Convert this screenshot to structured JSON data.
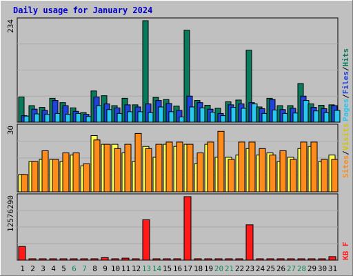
{
  "chart_data": [
    {
      "type": "bar",
      "title": "Daily usage for January 2024",
      "categories": [
        "1",
        "2",
        "3",
        "4",
        "5",
        "6",
        "7",
        "8",
        "9",
        "10",
        "11",
        "12",
        "13",
        "14",
        "15",
        "16",
        "17",
        "18",
        "19",
        "20",
        "21",
        "22",
        "23",
        "24",
        "25",
        "26",
        "27",
        "28",
        "29",
        "30",
        "31"
      ],
      "weekend_days": [
        "6",
        "7",
        "13",
        "14",
        "20",
        "21",
        "27",
        "28"
      ],
      "ymax_label": "234",
      "ylim": [
        0,
        234
      ],
      "legend": [
        "Pages",
        "Files",
        "Hits"
      ],
      "series": [
        {
          "name": "Hits",
          "color": "#0a7a5c",
          "values": [
            58,
            38,
            34,
            55,
            45,
            33,
            22,
            72,
            61,
            38,
            55,
            40,
            234,
            57,
            52,
            37,
            212,
            50,
            39,
            32,
            47,
            51,
            166,
            35,
            55,
            38,
            38,
            89,
            42,
            39,
            40
          ]
        },
        {
          "name": "Files",
          "color": "#1f44dd",
          "values": [
            15,
            30,
            27,
            50,
            38,
            25,
            18,
            58,
            42,
            33,
            40,
            35,
            42,
            50,
            43,
            27,
            60,
            45,
            30,
            20,
            40,
            42,
            45,
            31,
            52,
            29,
            32,
            60,
            34,
            31,
            38
          ]
        },
        {
          "name": "Pages",
          "color": "#29c8f0",
          "values": [
            14,
            19,
            18,
            20,
            18,
            20,
            13,
            38,
            29,
            20,
            24,
            24,
            22,
            35,
            24,
            12,
            35,
            33,
            23,
            15,
            34,
            32,
            42,
            20,
            28,
            20,
            21,
            50,
            26,
            22,
            27
          ]
        }
      ]
    },
    {
      "type": "bar",
      "ymax_label": "30",
      "ylim": [
        0,
        30
      ],
      "legend": [
        "Sites",
        "Visits"
      ],
      "series": [
        {
          "name": "Visits",
          "color": "#ffff55",
          "values": [
            8,
            14,
            15,
            15,
            14,
            17,
            12,
            26,
            22,
            22,
            18,
            14,
            21,
            16,
            22,
            21,
            22,
            13,
            22,
            16,
            16,
            17,
            20,
            17,
            18,
            14,
            16,
            20,
            21,
            14,
            17
          ]
        },
        {
          "name": "Sites",
          "color": "#ff8c1a",
          "values": [
            8,
            14,
            19,
            15,
            18,
            18,
            13,
            24,
            22,
            20,
            22,
            27,
            20,
            22,
            23,
            23,
            22,
            18,
            23,
            28,
            15,
            23,
            23,
            20,
            17,
            19,
            15,
            23,
            23,
            15,
            15
          ]
        }
      ]
    },
    {
      "type": "bar",
      "ymax_label": "12576290",
      "ylim": [
        0,
        12576290
      ],
      "legend": [
        "KB F"
      ],
      "series": [
        {
          "name": "KB F",
          "color": "#ff1a1a",
          "values": [
            2700000,
            120000,
            120000,
            120000,
            120000,
            120000,
            120000,
            120000,
            500000,
            120000,
            400000,
            120000,
            8000000,
            120000,
            120000,
            250000,
            12576290,
            120000,
            120000,
            120000,
            120000,
            120000,
            7000000,
            120000,
            120000,
            250000,
            250000,
            250000,
            120000,
            120000,
            700000
          ]
        }
      ]
    }
  ]
}
